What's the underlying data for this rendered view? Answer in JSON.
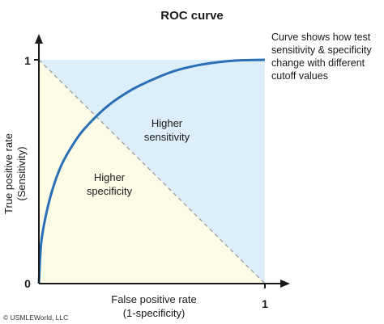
{
  "chart_data": {
    "type": "line",
    "title": "ROC curve",
    "xlabel": [
      "False positive rate",
      "(1-specificity)"
    ],
    "ylabel": [
      "True positive rate",
      "(Sensitivity)"
    ],
    "xlim": [
      0,
      1
    ],
    "ylim": [
      0,
      1
    ],
    "x_ticks": [
      "1"
    ],
    "y_ticks": [
      "0",
      "1"
    ],
    "grid": false,
    "series": [
      {
        "color": "#2a6fb6",
        "x": [
          0,
          0.01,
          0.03,
          0.06,
          0.1,
          0.15,
          0.2,
          0.3,
          0.4,
          0.5,
          0.6,
          0.7,
          0.8,
          0.9,
          1.0
        ],
        "y": [
          0,
          0.18,
          0.3,
          0.42,
          0.53,
          0.62,
          0.69,
          0.79,
          0.86,
          0.91,
          0.95,
          0.975,
          0.99,
          0.998,
          1.0
        ]
      }
    ],
    "reference_line": {
      "x": [
        0,
        1
      ],
      "y": [
        1,
        0
      ],
      "style": "dashed",
      "color": "#999999"
    },
    "regions": [
      {
        "label": [
          "Higher",
          "sensitivity"
        ],
        "color": "#dbeefa"
      },
      {
        "label": [
          "Higher",
          "specificity"
        ],
        "color": "#fcfbe6"
      }
    ],
    "annotation": [
      "Curve shows how test",
      "sensitivity & specificity",
      "change with different",
      "cutoff values"
    ]
  },
  "copyright": "© USMLEWorld, LLC",
  "colors": {
    "axis": "#1a1a1a",
    "curve": "#2a6fb6",
    "sensitivity_region": "#dbeefa",
    "specificity_region": "#fcfbe6",
    "diagonal": "#999999"
  }
}
